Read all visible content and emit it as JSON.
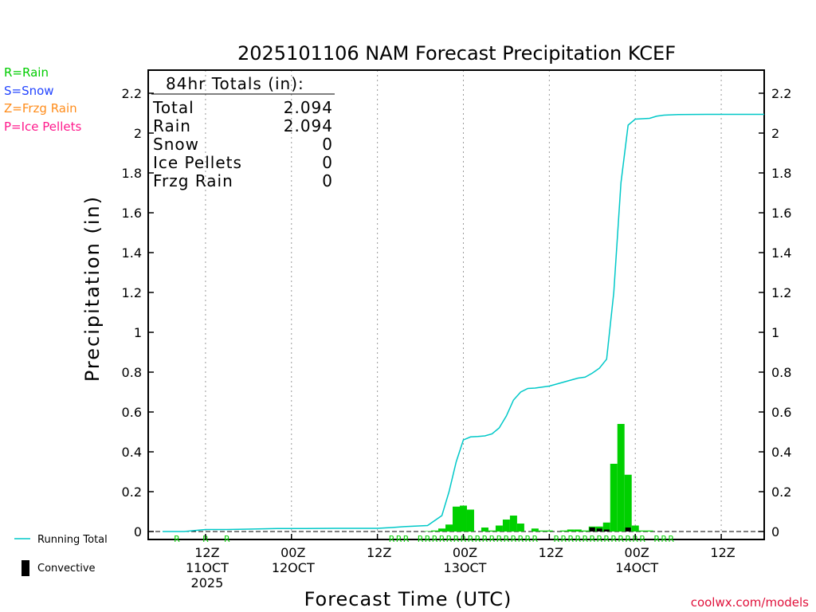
{
  "chart_data": {
    "type": "bar",
    "title": "2025101106 NAM Forecast Precipitation KCEF",
    "xlabel": "Forecast Time (UTC)",
    "ylabel": "Precipitation (in)",
    "ylim": [
      0,
      2.3
    ],
    "yticks": [
      0,
      0.2,
      0.4,
      0.6,
      0.8,
      1,
      1.2,
      1.4,
      1.6,
      1.8,
      2,
      2.2
    ],
    "ytick_labels": [
      "0",
      "0.2",
      "0.4",
      "0.6",
      "0.8",
      "1",
      "1.2",
      "1.4",
      "1.6",
      "1.8",
      "2",
      "2.2"
    ],
    "x_unit": "forecast hour",
    "xlim": [
      -2,
      84
    ],
    "xticks": [
      {
        "hour": 6,
        "label": "12Z",
        "date": "11OCT",
        "year": "2025"
      },
      {
        "hour": 18,
        "label": "00Z",
        "date": "12OCT",
        "year": ""
      },
      {
        "hour": 30,
        "label": "12Z",
        "date": "",
        "year": ""
      },
      {
        "hour": 42,
        "label": "00Z",
        "date": "13OCT",
        "year": ""
      },
      {
        "hour": 54,
        "label": "12Z",
        "date": "",
        "year": ""
      },
      {
        "hour": 66,
        "label": "00Z",
        "date": "14OCT",
        "year": ""
      },
      {
        "hour": 78,
        "label": "12Z",
        "date": "",
        "year": ""
      }
    ],
    "hourly_precip": {
      "name": "Hourly Precipitation",
      "color": "#00d000",
      "hours": [
        37,
        38,
        39,
        40,
        41,
        42,
        43,
        45,
        46,
        47,
        48,
        49,
        50,
        52,
        53,
        54,
        56,
        57,
        58,
        59,
        60,
        61,
        62,
        63,
        64,
        65,
        66,
        67,
        68
      ],
      "values": [
        0.002,
        0.005,
        0.015,
        0.035,
        0.125,
        0.13,
        0.11,
        0.02,
        0.005,
        0.03,
        0.06,
        0.08,
        0.04,
        0.015,
        0.005,
        0.005,
        0.005,
        0.01,
        0.01,
        0.005,
        0.025,
        0.025,
        0.045,
        0.34,
        0.54,
        0.285,
        0.03,
        0.005,
        0.005
      ]
    },
    "convective": {
      "name": "Convective",
      "color": "#000000",
      "hours": [
        60,
        61,
        62,
        65
      ],
      "values": [
        0.02,
        0.015,
        0.01,
        0.02
      ]
    },
    "running_total": {
      "name": "Running Total",
      "color": "#00c8c8",
      "hours": [
        0,
        3,
        6,
        9,
        12,
        16,
        20,
        24,
        28,
        30,
        32,
        34,
        37,
        39,
        40,
        41,
        42,
        43,
        44,
        45,
        46,
        47,
        48,
        49,
        50,
        51,
        52,
        53,
        54,
        56,
        57,
        58,
        59,
        60,
        61,
        62,
        63,
        64,
        65,
        66,
        67,
        68,
        69,
        70,
        72,
        76,
        80,
        84
      ],
      "values": [
        0.0,
        0.0,
        0.01,
        0.01,
        0.012,
        0.015,
        0.015,
        0.016,
        0.016,
        0.016,
        0.02,
        0.025,
        0.03,
        0.08,
        0.2,
        0.35,
        0.46,
        0.475,
        0.477,
        0.48,
        0.49,
        0.52,
        0.58,
        0.66,
        0.7,
        0.718,
        0.72,
        0.725,
        0.73,
        0.75,
        0.76,
        0.77,
        0.775,
        0.795,
        0.82,
        0.865,
        1.2,
        1.75,
        2.04,
        2.07,
        2.072,
        2.074,
        2.085,
        2.09,
        2.093,
        2.094,
        2.094,
        2.094
      ]
    },
    "ptype_markers": {
      "color": "#00cc00",
      "hours": [
        2,
        6,
        9,
        32,
        33,
        34,
        36,
        37,
        38,
        39,
        40,
        41,
        42,
        43,
        44,
        45,
        46,
        47,
        48,
        49,
        50,
        51,
        52,
        55,
        56,
        57,
        58,
        59,
        60,
        61,
        62,
        63,
        64,
        65,
        66,
        67,
        69,
        70,
        71
      ],
      "letter": "R"
    }
  },
  "totals_box": {
    "heading": "84hr Totals (in):",
    "rows": [
      {
        "label": "Total",
        "value": "2.094"
      },
      {
        "label": "Rain",
        "value": "2.094"
      },
      {
        "label": "Snow",
        "value": "0"
      },
      {
        "label": "Ice Pellets",
        "value": "0"
      },
      {
        "label": "Frzg Rain",
        "value": "0"
      }
    ]
  },
  "ptype_legend": [
    {
      "text": "R=Rain",
      "color": "#00cc00"
    },
    {
      "text": "S=Snow",
      "color": "#2244ff"
    },
    {
      "text": "Z=Frzg Rain",
      "color": "#ff8c1a"
    },
    {
      "text": "P=Ice Pellets",
      "color": "#ff1a8c"
    }
  ],
  "series_legend": {
    "running_total_label": "Running Total",
    "convective_label": "Convective"
  },
  "credit": "coolwx.com/models"
}
